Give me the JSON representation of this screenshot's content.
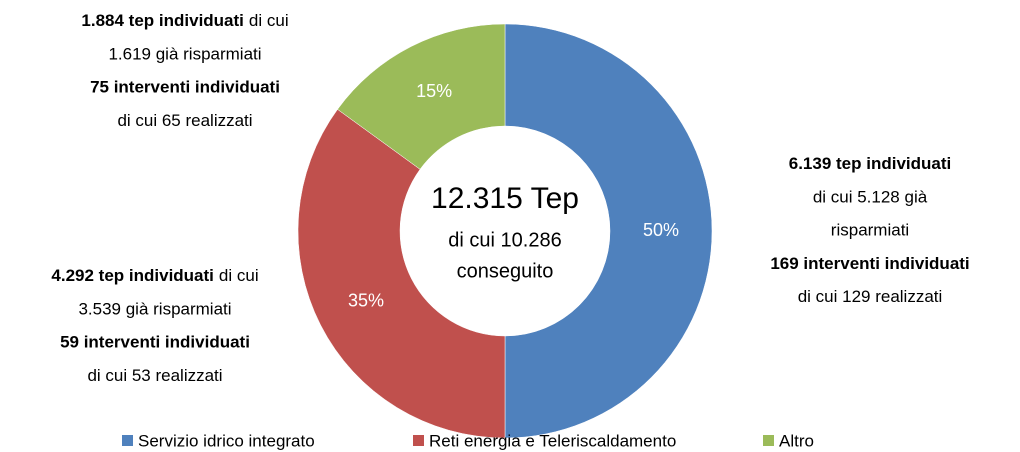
{
  "chart_data": {
    "type": "pie",
    "donut": true,
    "series": [
      {
        "name": "Servizio idrico integrato",
        "color": "#4f81bd"
      },
      {
        "name": "Reti energia e Teleriscaldamento",
        "color": "#c0504d"
      },
      {
        "name": "Altro",
        "color": "#9bbb59"
      }
    ],
    "values": [
      50,
      35,
      15
    ],
    "value_labels": [
      "50%",
      "35%",
      "15%"
    ],
    "center_text": [
      "12.315 Tep",
      "di cui 10.286",
      "conseguito"
    ],
    "annotations": [
      {
        "lines": [
          [
            {
              "text": "6.139 tep individuati",
              "bold": true
            }
          ],
          [
            {
              "text": "di cui 5.128 già"
            }
          ],
          [
            {
              "text": "risparmiati"
            }
          ],
          [
            {
              "text": "169 interventi individuati",
              "bold": true
            }
          ],
          [
            {
              "text": "di cui 129 realizzati"
            }
          ]
        ]
      },
      {
        "lines": [
          [
            {
              "text": "4.292 tep individuati",
              "bold": true
            },
            {
              "text": "di cui"
            }
          ],
          [
            {
              "text": "3.539 già risparmiati"
            }
          ],
          [
            {
              "text": "59 interventi individuati",
              "bold": true
            }
          ],
          [
            {
              "text": "di cui 53 realizzati"
            }
          ]
        ]
      },
      {
        "lines": [
          [
            {
              "text": "1.884 tep individuati",
              "bold": true
            },
            {
              "text": "di cui"
            }
          ],
          [
            {
              "text": "1.619 già risparmiati"
            }
          ],
          [
            {
              "text": "75 interventi individuati",
              "bold": true
            }
          ],
          [
            {
              "text": "di cui 65 realizzati"
            }
          ]
        ]
      }
    ],
    "legend": "bottom"
  }
}
